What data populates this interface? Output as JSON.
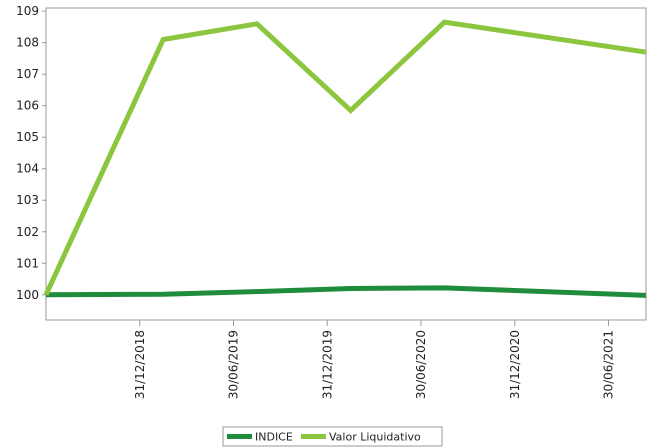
{
  "chart_data": {
    "type": "line",
    "x": [
      "31/12/2018",
      "30/06/2019",
      "31/12/2019",
      "30/06/2020",
      "31/12/2020",
      "30/06/2021"
    ],
    "x_tick_positions": [
      0.5,
      1.5,
      2.5,
      3.5,
      4.5,
      5.5
    ],
    "x_range": [
      -0.5,
      5.9
    ],
    "ylim": [
      99.2,
      109.1
    ],
    "yticks": [
      100,
      101,
      102,
      103,
      104,
      105,
      106,
      107,
      108,
      109
    ],
    "grid": false,
    "legend_position": "bottom-center",
    "series": [
      {
        "name": "INDICE",
        "color": "#1e8c3a",
        "points": [
          {
            "x": -0.5,
            "y": 100.0
          },
          {
            "x": 0.75,
            "y": 100.02
          },
          {
            "x": 1.75,
            "y": 100.1
          },
          {
            "x": 2.75,
            "y": 100.2
          },
          {
            "x": 3.75,
            "y": 100.22
          },
          {
            "x": 5.9,
            "y": 99.98
          }
        ]
      },
      {
        "name": "Valor Liquidativo",
        "color": "#8cc63f",
        "points": [
          {
            "x": -0.5,
            "y": 100.0
          },
          {
            "x": 0.75,
            "y": 108.1
          },
          {
            "x": 1.75,
            "y": 108.6
          },
          {
            "x": 2.75,
            "y": 105.85
          },
          {
            "x": 3.75,
            "y": 108.65
          },
          {
            "x": 5.9,
            "y": 107.7
          }
        ]
      }
    ],
    "title": "",
    "xlabel": "",
    "ylabel": ""
  }
}
